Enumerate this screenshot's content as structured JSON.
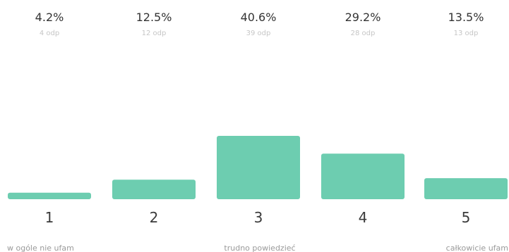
{
  "colors": {
    "bar": "#6dcdb0",
    "percent_text": "#333333",
    "count_text": "#c6c6c6",
    "category_text": "#3a3a3a",
    "scale_label_text": "#9a9a9a"
  },
  "chart_data": {
    "type": "bar",
    "categories": [
      "1",
      "2",
      "3",
      "4",
      "5"
    ],
    "values": [
      4.2,
      12.5,
      40.6,
      29.2,
      13.5
    ],
    "percent_labels": [
      "4.2%",
      "12.5%",
      "40.6%",
      "29.2%",
      "13.5%"
    ],
    "count_labels": [
      "4 odp",
      "12 odp",
      "39 odp",
      "28 odp",
      "13 odp"
    ],
    "scale_labels": {
      "left": "w ogóle nie ufam",
      "center": "trudno powiedzieć",
      "right": "całkowicie ufam"
    },
    "title": "",
    "xlabel": "",
    "ylabel": "",
    "ylim": [
      0,
      40.6
    ],
    "grid": false,
    "legend": "none"
  }
}
